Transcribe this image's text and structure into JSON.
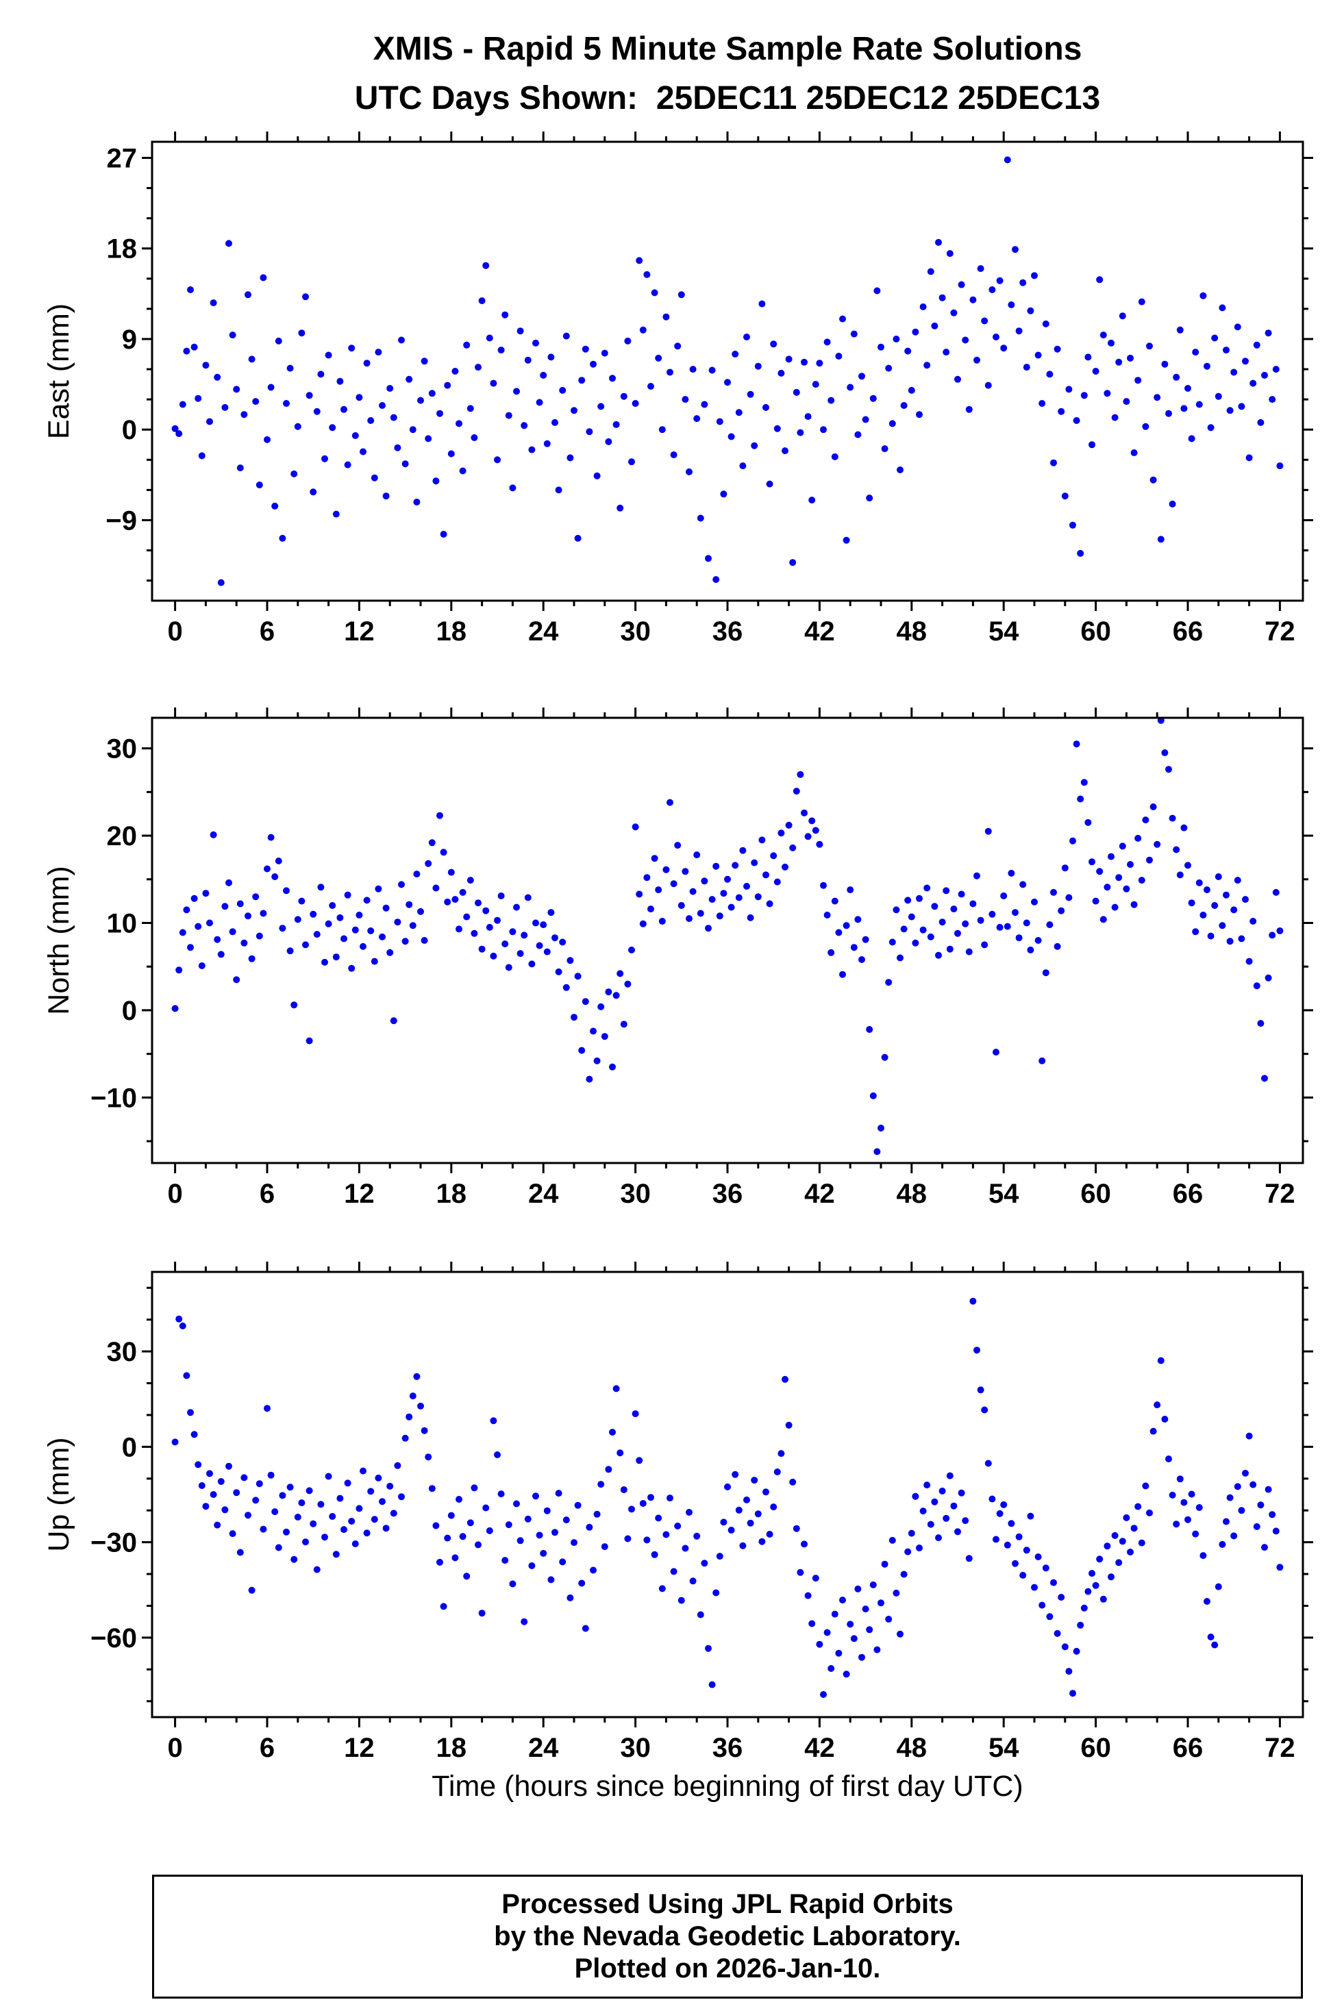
{
  "page": {
    "title": "XMIS - Rapid 5 Minute Sample Rate Solutions",
    "subtitle": "UTC Days Shown:  25DEC11 25DEC12 25DEC13",
    "xlabel": "Time (hours since beginning of first day UTC)",
    "footer_lines": [
      "Processed Using JPL Rapid Orbits",
      "by the Nevada Geodetic Laboratory.",
      "Plotted on 2026-Jan-10."
    ]
  },
  "style": {
    "point_color": "#0000EE",
    "frame_color": "#000000",
    "text_color": "#000000"
  },
  "chart_data": [
    {
      "type": "scatter",
      "name": "east",
      "ylabel": "East (mm)",
      "xlim": [
        -1.5,
        73.5
      ],
      "ylim": [
        -17.0,
        28.6
      ],
      "xticks": [
        0,
        6,
        12,
        18,
        24,
        30,
        36,
        42,
        48,
        54,
        60,
        66,
        72
      ],
      "yticks": [
        -9,
        0,
        9,
        18,
        27
      ],
      "x_minor_step": 2,
      "y_minor_step": 3,
      "x_start": 0,
      "x_step": 0.25,
      "y": [
        0.1,
        -0.4,
        2.5,
        7.8,
        13.9,
        8.2,
        3.1,
        -2.6,
        6.4,
        0.8,
        12.6,
        5.2,
        -15.2,
        2.2,
        18.5,
        9.4,
        4.0,
        -3.8,
        1.5,
        13.4,
        7.0,
        2.8,
        -5.5,
        15.1,
        -1.0,
        4.2,
        -7.6,
        8.8,
        -10.8,
        2.6,
        6.1,
        -4.4,
        0.3,
        9.6,
        13.2,
        3.4,
        -6.2,
        1.8,
        5.5,
        -2.9,
        7.4,
        0.2,
        -8.4,
        4.8,
        2.0,
        -3.5,
        8.1,
        -0.6,
        3.2,
        -2.2,
        6.6,
        0.9,
        -4.8,
        7.7,
        2.4,
        -6.6,
        4.1,
        1.2,
        -1.8,
        8.9,
        -3.4,
        5.0,
        0.0,
        -7.2,
        2.9,
        6.8,
        -0.9,
        3.6,
        -5.1,
        1.6,
        -10.4,
        4.4,
        -2.4,
        5.8,
        0.6,
        -4.1,
        8.4,
        2.1,
        -0.8,
        6.2,
        12.8,
        16.3,
        9.1,
        4.6,
        -3.0,
        7.9,
        11.4,
        1.4,
        -5.8,
        3.8,
        9.8,
        0.4,
        6.9,
        -2.0,
        8.6,
        2.7,
        5.4,
        -1.4,
        7.2,
        0.7,
        -6.0,
        3.9,
        9.3,
        -2.8,
        1.9,
        -10.8,
        4.9,
        8.0,
        -0.2,
        6.5,
        -4.6,
        2.3,
        7.6,
        -1.2,
        5.1,
        0.5,
        -7.8,
        3.3,
        8.8,
        -3.2,
        2.6,
        16.8,
        9.9,
        15.4,
        4.3,
        13.6,
        7.1,
        0.0,
        11.2,
        5.7,
        -2.5,
        8.3,
        13.4,
        3.0,
        -4.2,
        6.0,
        1.1,
        -8.8,
        2.5,
        -12.8,
        5.9,
        -14.9,
        0.8,
        -6.4,
        4.7,
        -0.7,
        7.5,
        1.7,
        -3.6,
        9.2,
        3.5,
        -1.6,
        6.3,
        12.5,
        2.2,
        -5.4,
        8.5,
        0.1,
        5.6,
        -2.1,
        7.0,
        -13.2,
        3.7,
        -0.3,
        6.7,
        1.3,
        -7.0,
        4.5,
        6.6,
        0.0,
        8.7,
        2.9,
        -2.7,
        7.3,
        11.0,
        -11.0,
        4.2,
        9.5,
        -0.5,
        5.3,
        1.0,
        -6.8,
        3.1,
        13.8,
        8.2,
        -1.9,
        6.1,
        0.6,
        9.0,
        -4.0,
        2.4,
        7.8,
        3.9,
        9.7,
        1.5,
        12.2,
        6.4,
        15.7,
        10.3,
        18.6,
        13.1,
        7.7,
        17.5,
        11.6,
        5.0,
        14.4,
        8.9,
        2.0,
        12.9,
        6.9,
        16.0,
        10.8,
        4.4,
        13.9,
        9.2,
        14.8,
        8.1,
        26.8,
        12.4,
        17.9,
        9.8,
        14.6,
        6.2,
        11.8,
        15.3,
        7.4,
        2.6,
        10.5,
        5.5,
        -3.3,
        8.0,
        1.8,
        -6.6,
        4.0,
        -9.5,
        0.9,
        -12.3,
        3.4,
        7.2,
        -1.5,
        5.8,
        14.9,
        9.4,
        3.6,
        8.6,
        1.2,
        6.7,
        11.3,
        2.8,
        7.1,
        -2.3,
        4.9,
        12.7,
        0.3,
        8.3,
        -5.0,
        3.2,
        -10.9,
        6.5,
        1.6,
        -7.4,
        5.2,
        9.9,
        2.1,
        4.1,
        -0.9,
        7.7,
        2.5,
        13.3,
        6.3,
        0.2,
        9.1,
        3.3,
        12.1,
        7.9,
        1.9,
        5.7,
        10.2,
        2.3,
        6.8,
        -2.8,
        4.6,
        8.4,
        0.7,
        5.4,
        9.6,
        3.0,
        6.0,
        -3.6
      ]
    },
    {
      "type": "scatter",
      "name": "north",
      "ylabel": "North (mm)",
      "xlim": [
        -1.5,
        73.5
      ],
      "ylim": [
        -17.5,
        33.5
      ],
      "xticks": [
        0,
        6,
        12,
        18,
        24,
        30,
        36,
        42,
        48,
        54,
        60,
        66,
        72
      ],
      "yticks": [
        -10,
        0,
        10,
        20,
        30
      ],
      "x_minor_step": 2,
      "y_minor_step": 5,
      "x_start": 0,
      "x_step": 0.25,
      "y": [
        0.2,
        4.6,
        8.9,
        11.5,
        7.2,
        12.8,
        9.6,
        5.1,
        13.4,
        10.0,
        20.1,
        8.1,
        6.4,
        11.9,
        14.6,
        9.0,
        3.5,
        12.2,
        7.7,
        10.8,
        5.9,
        13.0,
        8.5,
        11.1,
        16.2,
        19.8,
        15.3,
        17.1,
        9.4,
        13.7,
        6.8,
        0.6,
        10.4,
        12.5,
        7.5,
        -3.5,
        11.0,
        8.7,
        14.1,
        5.5,
        9.9,
        12.0,
        6.1,
        10.6,
        8.2,
        13.2,
        4.8,
        9.2,
        10.9,
        7.3,
        12.6,
        9.1,
        5.6,
        13.9,
        8.4,
        11.7,
        6.6,
        -1.2,
        10.1,
        14.4,
        7.9,
        12.1,
        9.7,
        15.6,
        11.3,
        8.0,
        16.8,
        19.2,
        14.0,
        22.3,
        18.1,
        12.4,
        15.8,
        12.7,
        9.3,
        13.5,
        10.7,
        14.9,
        8.8,
        12.3,
        7.0,
        11.4,
        9.5,
        6.2,
        10.3,
        13.1,
        7.6,
        4.9,
        9.0,
        11.8,
        6.5,
        8.6,
        12.9,
        5.3,
        10.0,
        7.4,
        9.8,
        6.7,
        11.2,
        8.3,
        4.4,
        7.8,
        2.6,
        5.7,
        -0.8,
        3.9,
        -4.6,
        1.0,
        -7.9,
        -2.4,
        -5.8,
        0.4,
        -3.0,
        2.1,
        -6.5,
        1.7,
        4.2,
        -1.6,
        3.0,
        6.9,
        21.0,
        13.3,
        9.9,
        15.2,
        11.6,
        17.4,
        13.8,
        10.2,
        16.1,
        23.8,
        14.5,
        18.9,
        12.0,
        15.9,
        10.5,
        13.6,
        17.8,
        11.1,
        14.8,
        9.4,
        12.7,
        16.5,
        10.8,
        13.4,
        15.0,
        11.8,
        16.6,
        12.9,
        18.3,
        14.2,
        10.6,
        16.9,
        13.0,
        19.5,
        15.5,
        12.2,
        17.7,
        14.7,
        20.3,
        16.4,
        21.2,
        18.6,
        25.1,
        27.0,
        22.6,
        19.9,
        21.7,
        20.6,
        19.0,
        14.3,
        10.9,
        6.6,
        12.5,
        8.9,
        4.1,
        9.7,
        13.8,
        7.2,
        10.4,
        5.8,
        8.1,
        -2.2,
        -9.8,
        -16.2,
        -13.5,
        -5.4,
        3.2,
        7.8,
        11.5,
        6.0,
        9.3,
        12.6,
        10.7,
        7.7,
        12.8,
        9.2,
        14.0,
        8.4,
        11.9,
        6.3,
        10.1,
        13.7,
        7.0,
        11.6,
        8.8,
        13.3,
        9.9,
        6.7,
        12.2,
        15.4,
        10.3,
        7.5,
        20.5,
        11.0,
        -4.8,
        9.5,
        13.1,
        9.6,
        15.7,
        11.2,
        8.3,
        14.4,
        10.0,
        6.9,
        12.4,
        8.0,
        -5.8,
        4.3,
        9.8,
        13.5,
        7.3,
        11.4,
        16.3,
        12.9,
        19.4,
        30.5,
        24.2,
        26.1,
        21.5,
        17.0,
        12.5,
        15.9,
        10.4,
        14.1,
        17.6,
        11.8,
        15.2,
        18.8,
        13.9,
        16.7,
        12.1,
        19.7,
        14.9,
        21.8,
        17.2,
        23.3,
        19.0,
        33.2,
        29.5,
        27.6,
        22.0,
        18.4,
        15.5,
        20.9,
        16.6,
        12.3,
        9.0,
        14.6,
        10.9,
        13.8,
        8.5,
        12.0,
        15.3,
        9.7,
        13.2,
        7.9,
        11.5,
        14.9,
        8.2,
        12.7,
        5.6,
        10.2,
        2.8,
        -1.5,
        -7.8,
        3.7,
        8.6,
        13.5,
        9.1
      ]
    },
    {
      "type": "scatter",
      "name": "up",
      "ylabel": "Up (mm)",
      "xlim": [
        -1.5,
        73.5
      ],
      "ylim": [
        -85,
        55
      ],
      "xticks": [
        0,
        6,
        12,
        18,
        24,
        30,
        36,
        42,
        48,
        54,
        60,
        66,
        72
      ],
      "yticks": [
        -60,
        -30,
        0,
        30
      ],
      "x_minor_step": 2,
      "y_minor_step": 10,
      "x_start": 0,
      "x_step": 0.25,
      "y": [
        1.5,
        40.2,
        38.0,
        22.4,
        10.8,
        3.9,
        -5.6,
        -12.2,
        -18.7,
        -8.4,
        -15.0,
        -24.6,
        -10.9,
        -19.8,
        -6.1,
        -27.3,
        -14.4,
        -33.2,
        -9.7,
        -21.5,
        -45.1,
        -16.8,
        -11.6,
        -25.9,
        12.1,
        -8.9,
        -20.4,
        -31.7,
        -15.3,
        -26.8,
        -12.7,
        -35.4,
        -22.1,
        -17.6,
        -29.9,
        -13.8,
        -24.2,
        -38.6,
        -18.1,
        -28.4,
        -9.3,
        -21.9,
        -33.8,
        -16.2,
        -26.0,
        -11.4,
        -23.4,
        -30.5,
        -19.4,
        -7.6,
        -27.1,
        -14.0,
        -22.8,
        -9.8,
        -17.2,
        -25.6,
        -12.4,
        -20.9,
        -5.9,
        -15.7,
        2.7,
        9.4,
        16.0,
        22.1,
        12.8,
        5.1,
        -3.2,
        -13.1,
        -24.8,
        -36.3,
        -50.2,
        -28.7,
        -21.6,
        -34.9,
        -16.5,
        -28.2,
        -40.7,
        -23.9,
        -12.9,
        -30.8,
        -52.3,
        -19.2,
        -26.4,
        8.2,
        -2.5,
        -14.8,
        -35.7,
        -24.5,
        -43.1,
        -17.9,
        -29.5,
        -55.0,
        -22.7,
        -37.4,
        -15.5,
        -27.8,
        -33.5,
        -20.1,
        -41.8,
        -26.9,
        -14.6,
        -36.2,
        -23.0,
        -47.5,
        -30.1,
        -18.4,
        -42.9,
        -57.1,
        -25.3,
        -38.8,
        -21.2,
        -11.8,
        -31.4,
        -7.1,
        4.6,
        18.3,
        -1.9,
        -13.5,
        -28.9,
        -19.6,
        10.4,
        -4.3,
        -17.8,
        -29.3,
        -15.9,
        -33.9,
        -22.4,
        -44.6,
        -27.6,
        -16.1,
        -39.2,
        -24.9,
        -48.3,
        -31.9,
        -20.6,
        -42.2,
        -28.1,
        -52.8,
        -36.6,
        -63.4,
        -74.8,
        -45.9,
        -34.4,
        -23.7,
        -12.6,
        -26.2,
        -8.7,
        -19.9,
        -31.1,
        -16.7,
        -24.0,
        -10.5,
        -21.1,
        -29.8,
        -14.2,
        -27.5,
        -18.9,
        -7.9,
        -2.1,
        21.2,
        6.8,
        -11.1,
        -25.7,
        -39.5,
        -30.6,
        -46.8,
        -55.6,
        -41.3,
        -62.1,
        -77.9,
        -58.4,
        -69.7,
        -52.6,
        -64.9,
        -48.2,
        -71.5,
        -55.8,
        -60.3,
        -44.7,
        -66.2,
        -51.0,
        -57.5,
        -43.4,
        -63.8,
        -49.1,
        -36.9,
        -54.2,
        -29.4,
        -46.0,
        -58.9,
        -40.1,
        -33.0,
        -27.2,
        -15.6,
        -31.8,
        -20.2,
        -12.0,
        -24.4,
        -17.3,
        -28.6,
        -13.9,
        -22.5,
        -9.1,
        -18.6,
        -26.7,
        -14.5,
        -23.2,
        -35.1,
        45.8,
        30.4,
        17.9,
        11.6,
        -5.2,
        -16.4,
        -29.1,
        -21.0,
        -18.2,
        -30.9,
        -24.1,
        -36.7,
        -28.3,
        -40.4,
        -32.5,
        -21.8,
        -44.2,
        -34.6,
        -49.8,
        -38.1,
        -53.4,
        -42.7,
        -58.7,
        -47.3,
        -62.9,
        -70.6,
        -77.5,
        -64.3,
        -56.1,
        -50.7,
        -45.5,
        -39.8,
        -43.6,
        -35.3,
        -47.9,
        -31.2,
        -40.9,
        -27.9,
        -36.4,
        -29.7,
        -22.3,
        -33.1,
        -25.6,
        -18.8,
        -30.2,
        -12.3,
        -20.8,
        4.9,
        13.2,
        27.1,
        8.7,
        -3.8,
        -15.2,
        -24.3,
        -10.1,
        -17.5,
        -22.9,
        -14.9,
        -27.4,
        -19.1,
        -34.2,
        -48.6,
        -59.8,
        -62.3,
        -44.0,
        -30.7,
        -23.5,
        -16.0,
        -28.0,
        -12.5,
        -20.0,
        -8.3,
        3.4,
        -11.9,
        -25.1,
        -18.3,
        -31.6,
        -13.4,
        -21.3,
        -26.5,
        -37.9
      ]
    }
  ]
}
